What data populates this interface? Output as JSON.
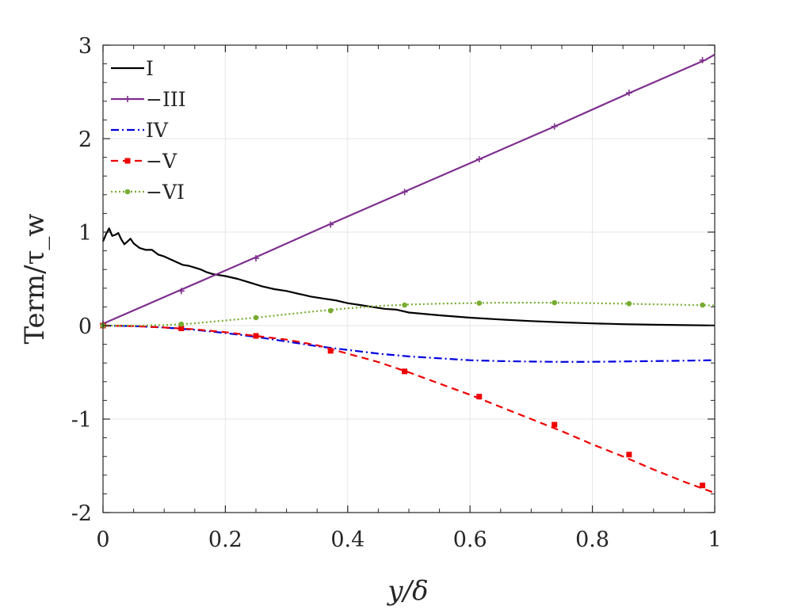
{
  "chart_data": {
    "type": "line",
    "xlabel": "y/δ",
    "ylabel": "Term/τ_w",
    "xlim": [
      0,
      1
    ],
    "ylim": [
      -2,
      3
    ],
    "x_ticks": [
      0,
      0.2,
      0.4,
      0.6,
      0.8,
      1
    ],
    "x_tick_labels": [
      "0",
      "0.2",
      "0.4",
      "0.6",
      "0.8",
      "1"
    ],
    "y_ticks": [
      -2,
      -1,
      0,
      1,
      2,
      3
    ],
    "y_tick_labels": [
      "-2",
      "-1",
      "0",
      "1",
      "2",
      "3"
    ],
    "grid": true,
    "legend_position": "top-left",
    "series": [
      {
        "name": "I",
        "color": "#000000",
        "dash": "solid",
        "marker": "none",
        "x": [
          0,
          0.005,
          0.01,
          0.015,
          0.02,
          0.025,
          0.03,
          0.035,
          0.04,
          0.045,
          0.05,
          0.06,
          0.07,
          0.08,
          0.09,
          0.1,
          0.11,
          0.12,
          0.13,
          0.14,
          0.15,
          0.16,
          0.17,
          0.18,
          0.2,
          0.22,
          0.24,
          0.26,
          0.28,
          0.3,
          0.32,
          0.34,
          0.36,
          0.38,
          0.4,
          0.42,
          0.44,
          0.46,
          0.48,
          0.5,
          0.55,
          0.6,
          0.65,
          0.7,
          0.75,
          0.8,
          0.85,
          0.9,
          0.95,
          1.0
        ],
        "y": [
          0.9,
          0.98,
          1.04,
          0.96,
          0.97,
          0.99,
          0.92,
          0.87,
          0.9,
          0.93,
          0.88,
          0.83,
          0.81,
          0.81,
          0.76,
          0.74,
          0.71,
          0.68,
          0.65,
          0.64,
          0.62,
          0.6,
          0.57,
          0.55,
          0.53,
          0.5,
          0.46,
          0.42,
          0.39,
          0.37,
          0.34,
          0.31,
          0.29,
          0.27,
          0.24,
          0.22,
          0.2,
          0.18,
          0.17,
          0.14,
          0.11,
          0.085,
          0.065,
          0.048,
          0.035,
          0.024,
          0.015,
          0.009,
          0.005,
          0.002
        ]
      },
      {
        "name": "−III",
        "color": "#7e2f8e",
        "dash": "solid",
        "marker": "plus",
        "x": [
          0,
          0.123,
          0.246,
          0.369,
          0.492,
          0.615,
          0.738,
          0.861,
          0.984,
          1.0
        ],
        "y": [
          0.02,
          0.37,
          0.72,
          1.08,
          1.43,
          1.78,
          2.13,
          2.49,
          2.84,
          2.9
        ],
        "marker_x": [
          0,
          0.128,
          0.25,
          0.372,
          0.493,
          0.615,
          0.738,
          0.86,
          0.98
        ],
        "marker_y": [
          0.02,
          0.37,
          0.72,
          1.08,
          1.43,
          1.78,
          2.13,
          2.49,
          2.84
        ]
      },
      {
        "name": "IV",
        "color": "#0000e0",
        "dash": "dashdot",
        "marker": "none",
        "x": [
          0,
          0.05,
          0.1,
          0.15,
          0.2,
          0.25,
          0.3,
          0.35,
          0.4,
          0.45,
          0.5,
          0.55,
          0.6,
          0.65,
          0.7,
          0.75,
          0.8,
          0.85,
          0.9,
          0.95,
          1.0
        ],
        "y": [
          0,
          -0.005,
          -0.02,
          -0.045,
          -0.08,
          -0.12,
          -0.17,
          -0.22,
          -0.26,
          -0.3,
          -0.33,
          -0.35,
          -0.37,
          -0.38,
          -0.385,
          -0.388,
          -0.387,
          -0.384,
          -0.38,
          -0.375,
          -0.37
        ]
      },
      {
        "name": "−V",
        "color": "#ee0000",
        "dash": "dashed",
        "marker": "square",
        "x": [
          0,
          0.05,
          0.1,
          0.15,
          0.2,
          0.25,
          0.3,
          0.35,
          0.4,
          0.45,
          0.5,
          0.55,
          0.6,
          0.65,
          0.7,
          0.75,
          0.8,
          0.85,
          0.9,
          0.95,
          1.0
        ],
        "y": [
          0,
          -0.005,
          -0.02,
          -0.04,
          -0.07,
          -0.11,
          -0.15,
          -0.21,
          -0.3,
          -0.39,
          -0.5,
          -0.62,
          -0.74,
          -0.87,
          -1.0,
          -1.13,
          -1.27,
          -1.4,
          -1.54,
          -1.67,
          -1.79
        ],
        "marker_x": [
          0,
          0.128,
          0.25,
          0.372,
          0.493,
          0.615,
          0.738,
          0.86,
          0.98
        ],
        "marker_y": [
          0,
          -0.03,
          -0.11,
          -0.27,
          -0.49,
          -0.76,
          -1.06,
          -1.38,
          -1.71
        ]
      },
      {
        "name": "−VI",
        "color": "#77ac30",
        "dash": "dotted",
        "marker": "dot",
        "x": [
          0,
          0.05,
          0.1,
          0.15,
          0.2,
          0.25,
          0.3,
          0.35,
          0.4,
          0.45,
          0.5,
          0.55,
          0.6,
          0.65,
          0.7,
          0.75,
          0.8,
          0.85,
          0.9,
          0.95,
          1.0
        ],
        "y": [
          0,
          0.0,
          0.005,
          0.025,
          0.055,
          0.085,
          0.12,
          0.155,
          0.185,
          0.21,
          0.225,
          0.235,
          0.24,
          0.245,
          0.245,
          0.243,
          0.24,
          0.235,
          0.228,
          0.222,
          0.215
        ],
        "marker_x": [
          0,
          0.128,
          0.25,
          0.372,
          0.493,
          0.615,
          0.738,
          0.86,
          0.98
        ],
        "marker_y": [
          0,
          0.015,
          0.085,
          0.16,
          0.22,
          0.24,
          0.245,
          0.235,
          0.22
        ]
      }
    ]
  }
}
